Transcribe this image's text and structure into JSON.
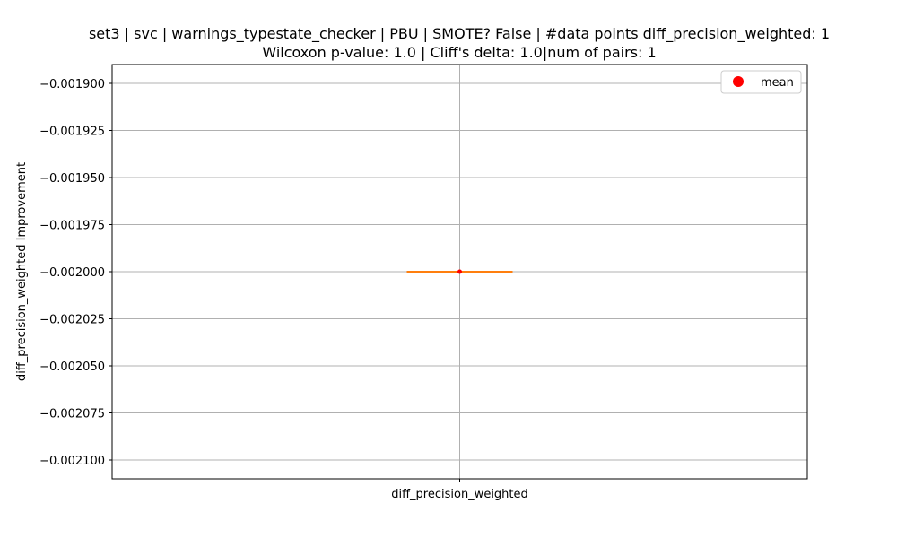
{
  "chart_data": {
    "type": "box",
    "title_line1": "set3 | svc | warnings_typestate_checker | PBU | SMOTE? False | #data points diff_precision_weighted: 1",
    "title_line2": "Wilcoxon p-value: 1.0 | Cliff's delta: 1.0|num of pairs: 1",
    "xlabel": "",
    "ylabel": "diff_precision_weighted Improvement",
    "categories": [
      "diff_precision_weighted"
    ],
    "ylim": [
      -0.00211,
      -0.00189
    ],
    "yticks": [
      -0.0019,
      -0.001925,
      -0.00195,
      -0.001975,
      -0.002,
      -0.002025,
      -0.00205,
      -0.002075,
      -0.0021
    ],
    "ytick_labels": [
      "−0.001900",
      "−0.001925",
      "−0.001950",
      "−0.001975",
      "−0.002000",
      "−0.002025",
      "−0.002050",
      "−0.002075",
      "−0.002100"
    ],
    "boxes": [
      {
        "category": "diff_precision_weighted",
        "min": -0.002,
        "q1": -0.002,
        "median": -0.002,
        "q3": -0.002,
        "max": -0.002,
        "mean": -0.002
      }
    ],
    "legend": {
      "entries": [
        "mean"
      ],
      "placement": "top-right"
    },
    "grid": true,
    "colors": {
      "median": "#ff7f0e",
      "mean": "#ff0000",
      "box": "#000000",
      "grid": "#b0b0b0"
    }
  }
}
